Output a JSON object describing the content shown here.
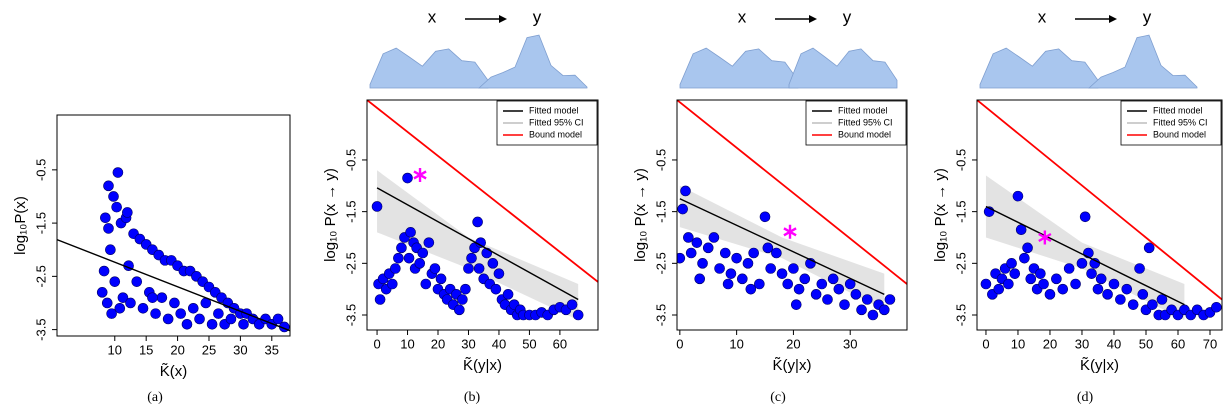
{
  "chart_data": [
    {
      "type": "scatter",
      "label": "(a)",
      "xlabel": "K̃(x)",
      "ylabel": "log₁₀P(x)",
      "xlim": [
        0.8,
        37.9
      ],
      "ylim": [
        -3.62,
        0.53
      ],
      "xticks": [
        10,
        15,
        20,
        25,
        30,
        35
      ],
      "yticks": [
        -3.5,
        -2.5,
        -1.5,
        -0.5
      ],
      "points": {
        "color": "#0000ff",
        "x": [
          8,
          8.3,
          8.5,
          8.8,
          9,
          9.3,
          9.5,
          9.8,
          10,
          10.3,
          10.5,
          10.8,
          11,
          11.3,
          11.8,
          12.2,
          12.5,
          13,
          13.5,
          14,
          14.5,
          15,
          15.5,
          16,
          16.5,
          17,
          17.5,
          18,
          18.5,
          19,
          19.5,
          20,
          20.5,
          21,
          21.5,
          22,
          22.5,
          23,
          23.5,
          24,
          24.5,
          25,
          25.5,
          26,
          26.5,
          27,
          27.5,
          28,
          28.5,
          29,
          30,
          30.5,
          31,
          32,
          33,
          34,
          35,
          36,
          37,
          12,
          9,
          16
        ],
        "values": [
          -2.8,
          -2.4,
          -1.4,
          -3.0,
          -0.8,
          -2.0,
          -3.2,
          -1.0,
          -2.6,
          -1.2,
          -0.55,
          -3.1,
          -1.5,
          -2.9,
          -1.4,
          -2.3,
          -3.0,
          -1.7,
          -2.6,
          -1.8,
          -3.1,
          -1.9,
          -2.8,
          -2.0,
          -3.2,
          -2.1,
          -2.9,
          -2.2,
          -3.3,
          -2.2,
          -3.0,
          -2.3,
          -3.2,
          -2.4,
          -3.4,
          -2.4,
          -3.1,
          -2.5,
          -3.3,
          -2.6,
          -3.0,
          -2.7,
          -3.4,
          -2.8,
          -3.2,
          -2.9,
          -3.4,
          -3.0,
          -3.3,
          -3.1,
          -3.2,
          -3.4,
          -3.2,
          -3.3,
          -3.4,
          -3.3,
          -3.4,
          -3.3,
          -3.45,
          -1.3,
          -1.6,
          -2.9
        ]
      },
      "series": [
        {
          "style": "line",
          "color": "#000000",
          "x": [
            0.8,
            37.9
          ],
          "values": [
            -1.81,
            -3.52
          ]
        }
      ]
    },
    {
      "type": "scatter",
      "label": "(b)",
      "xlabel": "K̃(y|x)",
      "ylabel": "log₁₀ P(x → y)",
      "header": {
        "left": "x",
        "right": "y"
      },
      "xlim": [
        -3.3,
        72.5
      ],
      "ylim": [
        -3.79,
        0.66
      ],
      "xticks": [
        0,
        10,
        20,
        30,
        40,
        50,
        60
      ],
      "yticks": [
        -3.5,
        -2.5,
        -1.5,
        -0.5
      ],
      "legend": "top-right",
      "points": {
        "color": "#0000ff",
        "x": [
          0,
          0.5,
          1,
          2,
          3,
          4,
          5,
          6,
          7,
          8,
          9,
          10,
          10.5,
          11,
          12,
          12.5,
          13,
          14,
          15,
          16,
          17,
          18,
          19,
          20,
          21,
          22,
          23,
          24,
          25,
          26,
          27,
          28,
          29,
          30,
          31,
          32,
          33,
          33.5,
          34,
          35,
          36,
          37,
          38,
          39,
          40,
          41,
          42,
          43,
          44,
          45,
          46,
          47,
          48,
          50,
          52,
          54,
          56,
          58,
          60,
          62,
          64,
          66
        ],
        "values": [
          -1.4,
          -2.9,
          -3.2,
          -2.8,
          -3.0,
          -2.7,
          -2.9,
          -2.6,
          -2.4,
          -2.2,
          -2.0,
          -0.85,
          -2.4,
          -1.9,
          -2.1,
          -2.6,
          -2.2,
          -2.5,
          -2.3,
          -2.9,
          -2.1,
          -2.7,
          -2.6,
          -3.0,
          -2.8,
          -3.1,
          -3.2,
          -3.0,
          -3.3,
          -3.1,
          -3.4,
          -3.2,
          -3.0,
          -2.6,
          -2.4,
          -2.2,
          -1.7,
          -2.6,
          -2.1,
          -2.8,
          -2.3,
          -2.9,
          -2.5,
          -3.0,
          -2.7,
          -3.2,
          -3.3,
          -3.1,
          -3.4,
          -3.3,
          -3.5,
          -3.4,
          -3.5,
          -3.5,
          -3.5,
          -3.45,
          -3.5,
          -3.4,
          -3.35,
          -3.4,
          -3.3,
          -3.5
        ]
      },
      "star": {
        "color": "#ff00ff",
        "x": 14.1,
        "y": -0.79
      },
      "series": [
        {
          "style": "line",
          "name": "Fitted model",
          "color": "#000000",
          "x": [
            0,
            66
          ],
          "values": [
            -1.04,
            -3.2
          ]
        },
        {
          "style": "band",
          "name": "Fitted 95% CI",
          "color": "#bdbdbd",
          "x": [
            0,
            30,
            66
          ],
          "values": [
            -0.7,
            -2.0,
            -2.9
          ],
          "lower": [
            -1.9,
            -2.6,
            -3.6
          ]
        },
        {
          "style": "line",
          "name": "Bound model",
          "color": "#ff0000",
          "x": [
            -3.3,
            72.5
          ],
          "values": [
            0.66,
            -2.86
          ]
        }
      ]
    },
    {
      "type": "scatter",
      "label": "(c)",
      "xlabel": "K̃(y|x)",
      "ylabel": "log₁₀ P(x → y)",
      "header": {
        "left": "x",
        "right": "y"
      },
      "xlim": [
        -0.5,
        40
      ],
      "ylim": [
        -3.79,
        0.66
      ],
      "xticks": [
        0,
        10,
        20,
        30
      ],
      "yticks": [
        -3.5,
        -2.5,
        -1.5,
        -0.5
      ],
      "legend": "top-right",
      "points": {
        "color": "#0000ff",
        "x": [
          0,
          0.5,
          1,
          1.5,
          2,
          3,
          4,
          5,
          6,
          7,
          8,
          9,
          10,
          11,
          12,
          13,
          14,
          15,
          15.5,
          16,
          17,
          18,
          19,
          20,
          21,
          22,
          23,
          24,
          25,
          26,
          27,
          28,
          29,
          30,
          31,
          32,
          33,
          34,
          35,
          36,
          37,
          3.5,
          8.5,
          12.5,
          20.5
        ],
        "values": [
          -2.4,
          -1.45,
          -1.1,
          -2.0,
          -2.3,
          -2.1,
          -2.5,
          -2.2,
          -2.0,
          -2.6,
          -2.3,
          -2.7,
          -2.4,
          -2.8,
          -2.5,
          -2.3,
          -2.9,
          -1.6,
          -2.2,
          -2.6,
          -2.3,
          -2.7,
          -2.9,
          -2.6,
          -3.0,
          -2.8,
          -2.5,
          -3.1,
          -2.9,
          -3.2,
          -2.8,
          -3.0,
          -3.3,
          -2.9,
          -3.1,
          -3.4,
          -3.2,
          -3.5,
          -3.3,
          -3.4,
          -3.2,
          -2.8,
          -2.9,
          -3.0,
          -3.3
        ]
      },
      "star": {
        "color": "#ff00ff",
        "x": 19.4,
        "y": -1.89
      },
      "series": [
        {
          "style": "line",
          "name": "Fitted model",
          "color": "#000000",
          "x": [
            0,
            36
          ],
          "values": [
            -1.25,
            -3.1
          ]
        },
        {
          "style": "band",
          "name": "Fitted 95% CI",
          "color": "#bdbdbd",
          "x": [
            0,
            18,
            36
          ],
          "values": [
            -1.0,
            -2.0,
            -2.7
          ],
          "lower": [
            -1.8,
            -2.4,
            -3.4
          ]
        },
        {
          "style": "line",
          "name": "Bound model",
          "color": "#ff0000",
          "x": [
            -0.5,
            40
          ],
          "values": [
            0.66,
            -2.9
          ]
        }
      ]
    },
    {
      "type": "scatter",
      "label": "(d)",
      "xlabel": "K̃(y|x)",
      "ylabel": "log₁₀ P(x → y)",
      "header": {
        "left": "x",
        "right": "y"
      },
      "xlim": [
        -2.8,
        73.75
      ],
      "ylim": [
        -3.79,
        0.66
      ],
      "xticks": [
        0,
        10,
        20,
        30,
        40,
        50,
        60,
        70
      ],
      "yticks": [
        -3.5,
        -2.5,
        -1.5,
        -0.5
      ],
      "legend": "top-right",
      "points": {
        "color": "#0000ff",
        "x": [
          0,
          1,
          2,
          3,
          4,
          5,
          6,
          7,
          8,
          9,
          10,
          11,
          12,
          13,
          14,
          15,
          16,
          17,
          18,
          20,
          22,
          24,
          26,
          28,
          30,
          31,
          32,
          33,
          34,
          35,
          36,
          38,
          40,
          42,
          44,
          46,
          48,
          49,
          50,
          51,
          52,
          54,
          55,
          56,
          58,
          60,
          62,
          64,
          66,
          68,
          70,
          72
        ],
        "values": [
          -2.9,
          -1.5,
          -3.1,
          -2.7,
          -3.0,
          -2.8,
          -2.6,
          -2.9,
          -2.5,
          -2.7,
          -1.2,
          -1.85,
          -2.4,
          -2.2,
          -2.8,
          -2.6,
          -3.0,
          -2.7,
          -2.9,
          -3.1,
          -2.8,
          -3.0,
          -2.6,
          -2.9,
          -2.5,
          -1.6,
          -2.3,
          -2.7,
          -2.5,
          -3.0,
          -2.8,
          -3.1,
          -2.9,
          -3.2,
          -3.0,
          -3.3,
          -2.6,
          -3.1,
          -3.4,
          -2.2,
          -3.3,
          -3.5,
          -3.2,
          -3.5,
          -3.4,
          -3.5,
          -3.4,
          -3.5,
          -3.4,
          -3.5,
          -3.45,
          -3.35
        ]
      },
      "star": {
        "color": "#ff00ff",
        "x": 18.4,
        "y": -2.0
      },
      "series": [
        {
          "style": "line",
          "name": "Fitted model",
          "color": "#000000",
          "x": [
            0,
            62
          ],
          "values": [
            -1.4,
            -3.3
          ]
        },
        {
          "style": "band",
          "name": "Fitted 95% CI",
          "color": "#bdbdbd",
          "x": [
            0,
            30,
            62
          ],
          "values": [
            -0.8,
            -2.1,
            -2.9
          ],
          "lower": [
            -2.0,
            -2.6,
            -3.6
          ]
        },
        {
          "style": "line",
          "name": "Bound model",
          "color": "#ff0000",
          "x": [
            -2.8,
            73.75
          ],
          "values": [
            0.66,
            -3.2
          ]
        }
      ]
    }
  ]
}
